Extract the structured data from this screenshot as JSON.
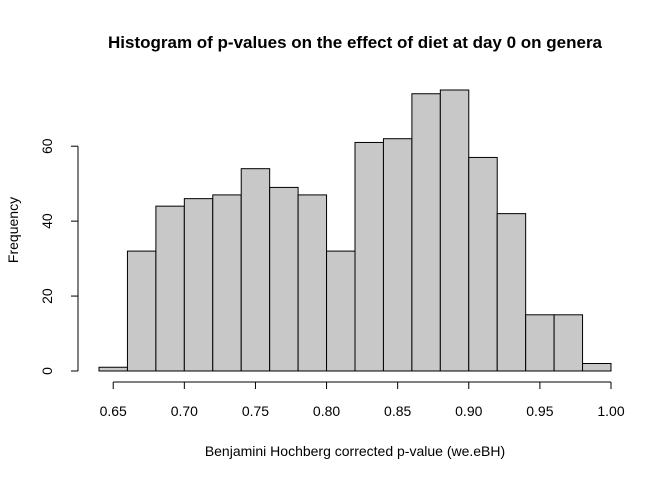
{
  "chart_data": {
    "type": "bar",
    "title": "Histogram of p-values on the effect of diet at day 0 on genera",
    "xlabel": "Benjamini Hochberg corrected p-value (we.eBH)",
    "ylabel": "Frequency",
    "bins": [
      {
        "start": 0.64,
        "end": 0.66,
        "count": 1
      },
      {
        "start": 0.66,
        "end": 0.68,
        "count": 32
      },
      {
        "start": 0.68,
        "end": 0.7,
        "count": 44
      },
      {
        "start": 0.7,
        "end": 0.72,
        "count": 46
      },
      {
        "start": 0.72,
        "end": 0.74,
        "count": 47
      },
      {
        "start": 0.74,
        "end": 0.76,
        "count": 54
      },
      {
        "start": 0.76,
        "end": 0.78,
        "count": 49
      },
      {
        "start": 0.78,
        "end": 0.8,
        "count": 47
      },
      {
        "start": 0.8,
        "end": 0.82,
        "count": 32
      },
      {
        "start": 0.82,
        "end": 0.84,
        "count": 61
      },
      {
        "start": 0.84,
        "end": 0.86,
        "count": 62
      },
      {
        "start": 0.86,
        "end": 0.88,
        "count": 74
      },
      {
        "start": 0.88,
        "end": 0.9,
        "count": 75
      },
      {
        "start": 0.9,
        "end": 0.92,
        "count": 57
      },
      {
        "start": 0.92,
        "end": 0.94,
        "count": 42
      },
      {
        "start": 0.94,
        "end": 0.96,
        "count": 15
      },
      {
        "start": 0.96,
        "end": 0.98,
        "count": 15
      },
      {
        "start": 0.98,
        "end": 1.0,
        "count": 2
      }
    ],
    "xlim": [
      0.64,
      1.0
    ],
    "ylim": [
      0,
      75
    ],
    "x_ticks": [
      0.65,
      0.7,
      0.75,
      0.8,
      0.85,
      0.9,
      0.95,
      1.0
    ],
    "x_tick_labels": [
      "0.65",
      "0.70",
      "0.75",
      "0.80",
      "0.85",
      "0.90",
      "0.95",
      "1.00"
    ],
    "y_ticks": [
      0,
      20,
      40,
      60
    ],
    "y_tick_labels": [
      "0",
      "20",
      "40",
      "60"
    ],
    "grid": false,
    "bar_fill": "#c8c8c8",
    "bar_stroke": "#000000"
  }
}
